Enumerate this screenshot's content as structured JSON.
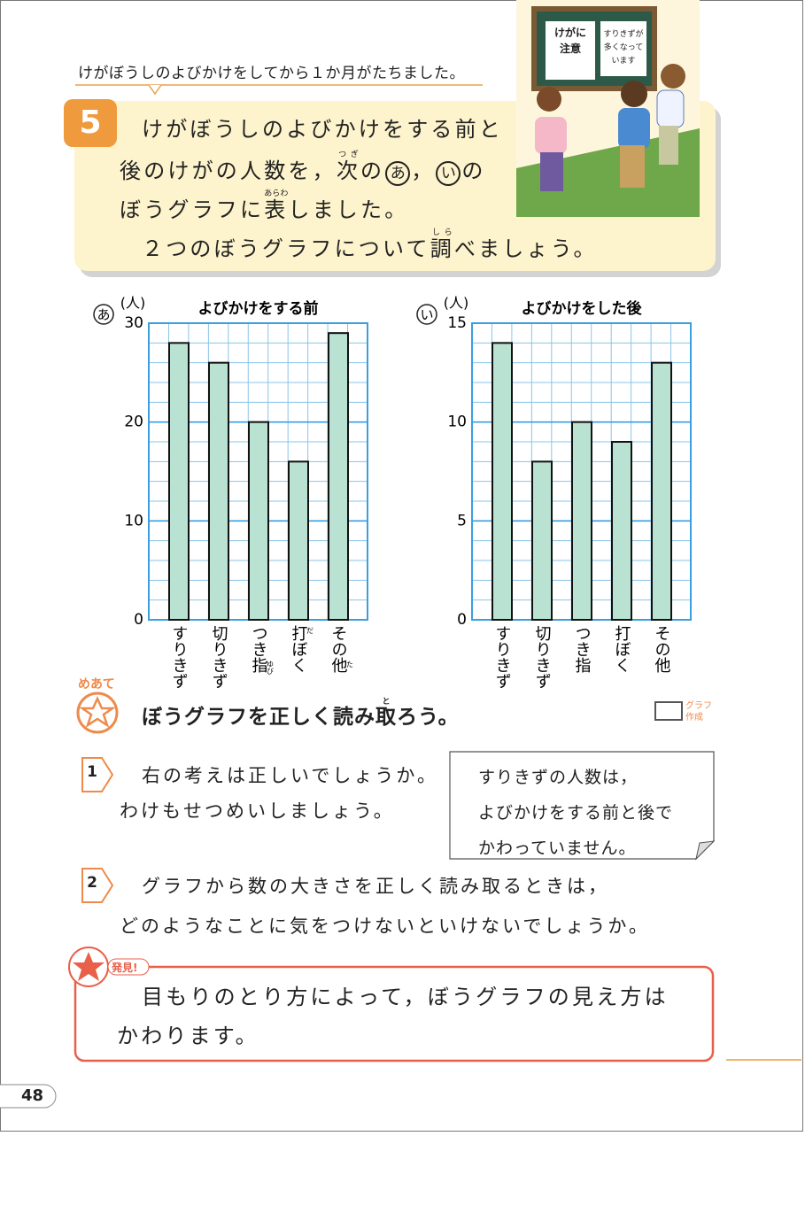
{
  "intro": "けがぼうしのよびかけをしてから１か月がたちました。",
  "illustration": {
    "poster_1": [
      "けがに",
      "注意"
    ],
    "poster_2": [
      "すりきずが",
      "多くなって",
      "います"
    ]
  },
  "problem": {
    "number": "5",
    "lines": [
      [
        "けがぼうしのよびかけをする前と"
      ],
      [
        "後のけがの人数を，",
        {
          "text": "次",
          "ruby": "つぎ"
        },
        "の",
        {
          "text": "あ",
          "circled": true
        },
        "，",
        {
          "text": "い",
          "circled": true
        },
        "の"
      ],
      [
        "ぼうグラフに",
        {
          "text": "表",
          "ruby": "あらわ"
        },
        "しました。"
      ],
      [
        "２つのぼうグラフについて",
        {
          "text": "調",
          "ruby": "しら"
        },
        "べましょう。"
      ]
    ]
  },
  "chart_data": [
    {
      "type": "bar",
      "label": "あ",
      "unit": "(人)",
      "title": "よびかけをする前",
      "categories": [
        "すりきず",
        "切りきず",
        "つき指",
        "打ぼく",
        "その他"
      ],
      "category_ruby": [
        null,
        null,
        "ゆび",
        "だ",
        "た"
      ],
      "values": [
        28,
        26,
        20,
        16,
        29
      ],
      "color": "#b9e2d3",
      "ylim": [
        0,
        30
      ],
      "yticks": [
        0,
        10,
        20,
        30
      ],
      "grid": true
    },
    {
      "type": "bar",
      "label": "い",
      "unit": "(人)",
      "title": "よびかけをした後",
      "categories": [
        "すりきず",
        "切りきず",
        "つき指",
        "打ぼく",
        "その他"
      ],
      "category_ruby": [
        null,
        null,
        null,
        null,
        null
      ],
      "values": [
        14,
        8,
        10,
        9,
        13
      ],
      "color": "#b9e2d3",
      "ylim": [
        0,
        15
      ],
      "yticks": [
        0,
        5,
        10,
        15
      ],
      "grid": true
    }
  ],
  "goal": {
    "label": "めあて",
    "text": [
      "ぼうグラフを正しく読み",
      {
        "text": "取",
        "ruby": "と"
      },
      "ろう。"
    ],
    "tool": [
      "グラフ",
      "作成"
    ]
  },
  "questions": [
    {
      "number": "1",
      "lines": [
        "右の考えは正しいでしょうか。",
        "わけもせつめいしましょう。"
      ],
      "note": [
        "すりきずの人数は，",
        "よびかけをする前と後で",
        "かわっていません。"
      ]
    },
    {
      "number": "2",
      "lines": [
        "グラフから数の大きさを正しく読み取るときは，",
        "どのようなことに気をつけないといけないでしょうか。"
      ]
    }
  ],
  "discovery": {
    "label": "発見!",
    "lines": [
      "目もりのとり方によって，ぼうグラフの見え方は",
      "かわります。"
    ]
  },
  "page_number": "48"
}
